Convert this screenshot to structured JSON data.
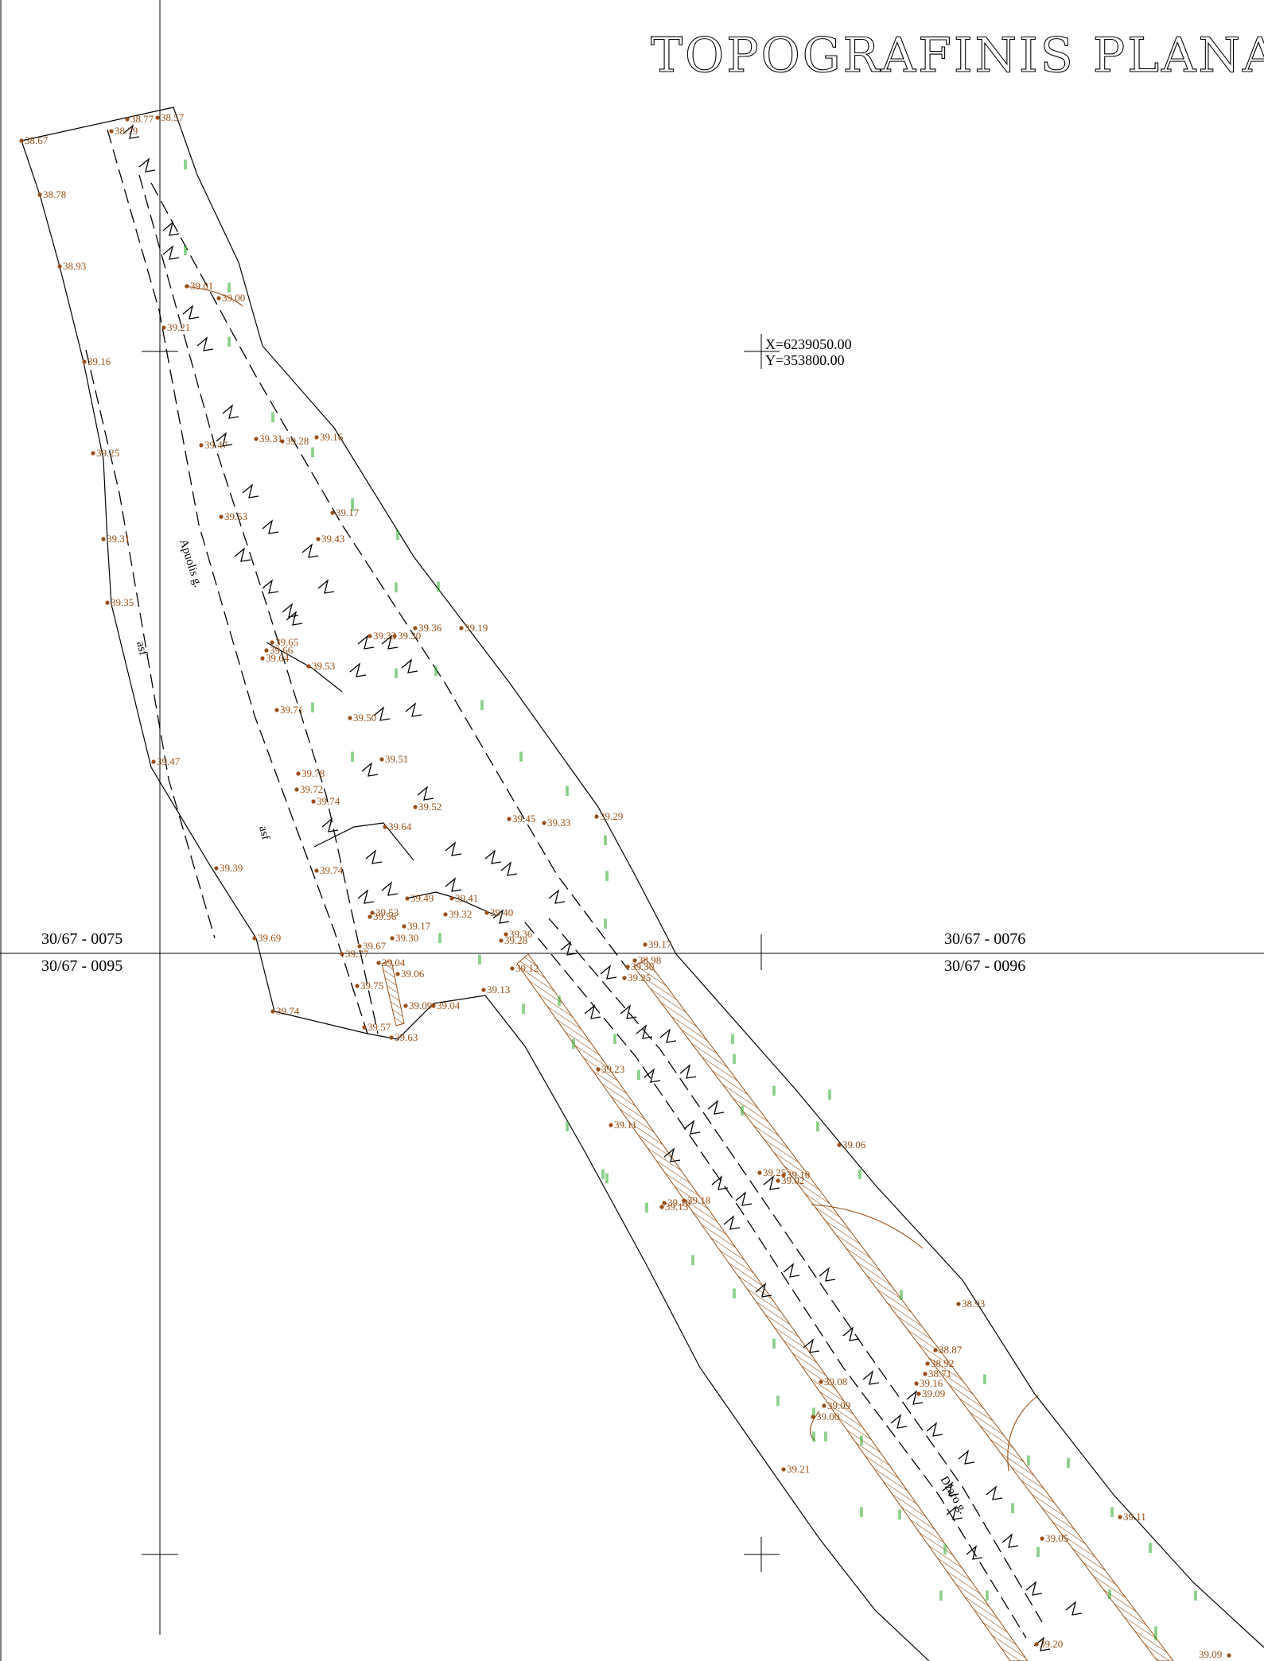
{
  "title": "TOPOGRAFINIS PLANAS",
  "coordinate_label": {
    "x": "X=6239050.00",
    "y": "Y=353800.00"
  },
  "sheet_labels": [
    {
      "id": "sheet-0075",
      "text": "30/67 - 0075"
    },
    {
      "id": "sheet-0095",
      "text": "30/67 - 0095"
    },
    {
      "id": "sheet-0076",
      "text": "30/67 - 0076"
    },
    {
      "id": "sheet-0096",
      "text": "30/67 - 0096"
    }
  ],
  "street_labels": [
    {
      "id": "street-apuolis",
      "text": "Apuolis g."
    },
    {
      "id": "street-dzaro",
      "text": "Džaro g."
    }
  ],
  "surface_labels": [
    {
      "id": "surface-asf-1",
      "text": "asf"
    },
    {
      "id": "surface-asf-2",
      "text": "asf"
    }
  ],
  "elevations": [
    "38.67",
    "38.78",
    "38.93",
    "39.16",
    "39.25",
    "39.31",
    "39.35",
    "39.47",
    "39.39",
    "39.69",
    "39.74",
    "38.79",
    "38.77",
    "38.57",
    "39.01",
    "39.00",
    "39.21",
    "39.47",
    "39.31",
    "39.28",
    "39.16",
    "39.17",
    "39.53",
    "39.43",
    "39.33",
    "39.36",
    "39.30",
    "39.19",
    "39.65",
    "39.66",
    "39.64",
    "39.53",
    "39.71",
    "39.50",
    "39.51",
    "39.78",
    "39.72",
    "39.74",
    "39.52",
    "39.64",
    "39.45",
    "39.33",
    "39.29",
    "39.74",
    "39.49",
    "39.41",
    "39.53",
    "39.56",
    "39.32",
    "39.40",
    "39.17",
    "39.36",
    "39.28",
    "39.67",
    "39.30",
    "39.17",
    "39.77",
    "39.04",
    "39.06",
    "39.75",
    "39.09",
    "39.04",
    "39.13",
    "39.57",
    "39.63",
    "39.12",
    "38.98",
    "39.30",
    "39.25",
    "39.23",
    "39.11",
    "39.06",
    "39.25",
    "39.10",
    "39.02",
    "39.18",
    "39.13",
    "39.10",
    "38.93",
    "38.87",
    "38.92",
    "38.71",
    "39.16",
    "39.09",
    "39.08",
    "39.09",
    "39.00",
    "39.21",
    "39.05",
    "39.11",
    "39.20",
    "39.09"
  ],
  "colors": {
    "elevation": "#9a4e14",
    "vegetation": "#23a823",
    "lines": "#000000"
  }
}
